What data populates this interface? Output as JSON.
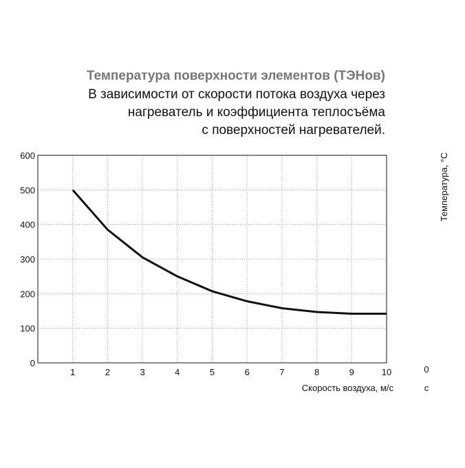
{
  "chart_data": {
    "type": "line",
    "title": "Температура поверхности элементов (ТЭНов)",
    "subtitle": [
      "В зависимости от скорости потока воздуха через",
      "нагреватель  и  коэффициента  теплосъёма",
      "с поверхностей нагревателей."
    ],
    "x": [
      1,
      2,
      3,
      4,
      5,
      6,
      7,
      8,
      9,
      10
    ],
    "values": [
      500,
      385,
      305,
      250,
      207,
      178,
      158,
      147,
      142,
      142
    ],
    "color": "#111111",
    "xlabel": "Скорость воздуха, м/с",
    "ylabel": "Температура, °С",
    "annotations": [
      "0",
      "с"
    ],
    "xlim": [
      0,
      10
    ],
    "xticks": [
      1,
      2,
      3,
      4,
      5,
      6,
      7,
      8,
      9,
      10
    ],
    "ylim": [
      0,
      600
    ],
    "yticks": [
      0,
      100,
      200,
      300,
      400,
      500,
      600
    ],
    "grid": true
  }
}
